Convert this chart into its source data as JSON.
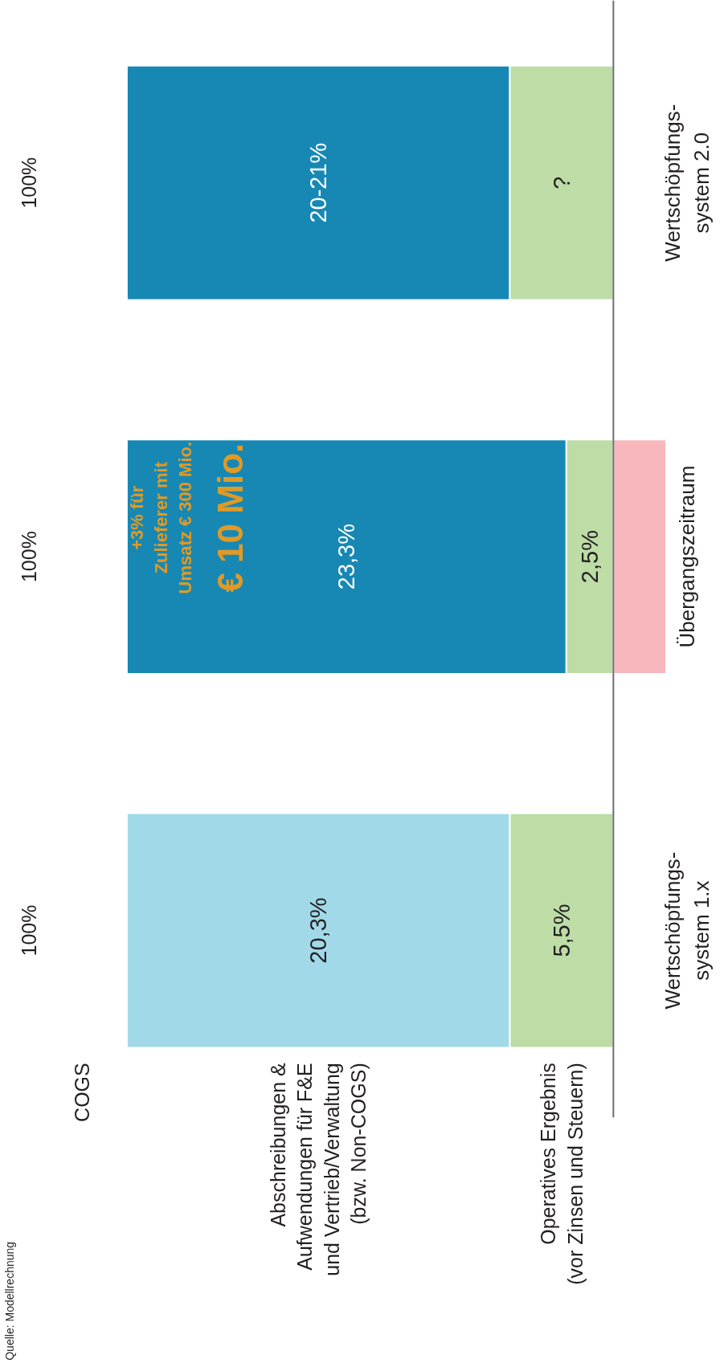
{
  "chart_data": {
    "type": "bar",
    "orientation": "horizontal",
    "stacked": true,
    "categories": [
      "Wertschöpfungs-\nsystem 2.0",
      "Übergangszeitraum",
      "Wertschöpfungs-\nsystem 1.x"
    ],
    "series": [
      {
        "name": "Operatives Ergebnis\n(vor Zinsen und Steuern)",
        "color": "#bddca6",
        "values": [
          5.5,
          2.5,
          5.5
        ],
        "value_labels": [
          "?",
          "2,5%",
          "5,5%"
        ]
      },
      {
        "name": "Abschreibungen &\nAufwendungen für F&E\nund Vertrieb/Verwaltung\n(bzw. Non-COGS)",
        "colors": [
          "#1788b4",
          "#1788b4",
          "#a1d9e8"
        ],
        "values": [
          20.3,
          23.3,
          20.3
        ],
        "value_labels": [
          "20-21%",
          "23,3%",
          "20,3%"
        ]
      },
      {
        "color": "#f7b7bc",
        "values": [
          null,
          -2.8,
          null
        ]
      }
    ],
    "tick_labels": false,
    "grid": false,
    "annotations": [
      "+3% für\nZulieferer mit\nUmsatz € 300 Mio.",
      "€ 10 Mio.",
      "Quelle: Modellrechnung",
      "COGS",
      "100%",
      "100%",
      "100%"
    ]
  }
}
